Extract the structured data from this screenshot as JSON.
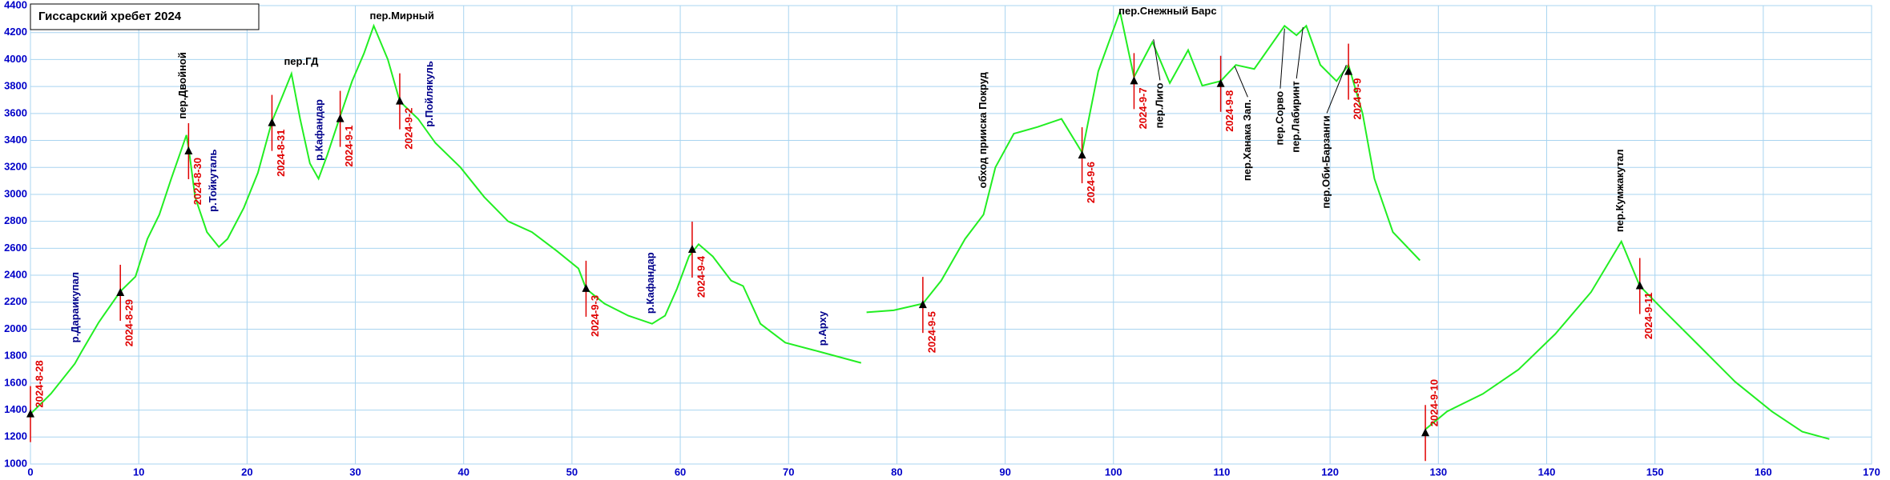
{
  "chart_data": {
    "type": "line",
    "title": "Гиссарский хребет 2024",
    "xlim": [
      0,
      170
    ],
    "ylim": [
      1000,
      4400
    ],
    "xticks": [
      0,
      10,
      20,
      30,
      40,
      50,
      60,
      70,
      80,
      90,
      100,
      110,
      120,
      130,
      140,
      150,
      160,
      170
    ],
    "yticks": [
      1000,
      1200,
      1400,
      1600,
      1800,
      2000,
      2200,
      2400,
      2600,
      2800,
      3000,
      3200,
      3400,
      3600,
      3800,
      4000,
      4200,
      4400
    ],
    "grid": true,
    "color": "#22ee22",
    "x": [
      0,
      1.9,
      4.1,
      4.7,
      6.3,
      8.3,
      9.7,
      10.8,
      11.9,
      13,
      13.8,
      14.4,
      14.7,
      15.2,
      16.3,
      17.4,
      18.2,
      19.7,
      21,
      22.3,
      23.3,
      24.1,
      24.9,
      25.8,
      26.6,
      27.4,
      28.6,
      29.7,
      30.8,
      31.7,
      33,
      34.1,
      35.8,
      37.4,
      39.7,
      41.9,
      44.1,
      46.3,
      48.6,
      50.6,
      51.3,
      53,
      55.2,
      57.4,
      58.6,
      59.7,
      60.8,
      61.7,
      63,
      64.7,
      65.8,
      67.4,
      69.7,
      73,
      76.7,
      null,
      77.2,
      79.7,
      82.4,
      84.1,
      86.3,
      88,
      89.1,
      90.8,
      93,
      95.2,
      97.1,
      98.6,
      100.6,
      101.9,
      103.6,
      105.2,
      106.9,
      108.2,
      109.9,
      111.3,
      113,
      115.8,
      116.9,
      117.8,
      119.1,
      120.6,
      121.7,
      123,
      124.1,
      125.8,
      128.3,
      null,
      128.8,
      130.8,
      134.1,
      137.4,
      140.8,
      144.1,
      146.9,
      148.6,
      150.8,
      154.1,
      157.4,
      160.8,
      163.6,
      166.1
    ],
    "values": [
      1370,
      1522,
      1744,
      1830,
      2050,
      2280,
      2390,
      2670,
      2850,
      3116,
      3300,
      3440,
      3290,
      2980,
      2720,
      2610,
      2670,
      2900,
      3160,
      3540,
      3736,
      3895,
      3560,
      3230,
      3116,
      3290,
      3580,
      3840,
      4045,
      4250,
      4000,
      3690,
      3560,
      3380,
      3200,
      2980,
      2800,
      2720,
      2580,
      2450,
      2300,
      2190,
      2100,
      2040,
      2100,
      2300,
      2540,
      2630,
      2540,
      2360,
      2320,
      2040,
      1900,
      1830,
      1750,
      null,
      2125,
      2140,
      2190,
      2360,
      2670,
      2850,
      3200,
      3450,
      3500,
      3560,
      3310,
      3913,
      4356,
      3870,
      4130,
      3825,
      4070,
      3806,
      3840,
      3960,
      3930,
      4250,
      4180,
      4250,
      3960,
      3840,
      3960,
      3600,
      3116,
      2720,
      2510,
      null,
      1257,
      1390,
      1520,
      1700,
      1965,
      2275,
      2650,
      2320,
      2140,
      1875,
      1610,
      1390,
      1240,
      1185
    ],
    "markers": {
      "x": [
        0,
        8.3,
        14.6,
        22.3,
        28.6,
        34.1,
        51.3,
        61.1,
        82.4,
        97.1,
        101.9,
        109.9,
        121.7,
        128.8,
        148.6
      ],
      "y": [
        1370,
        2270,
        3320,
        3530,
        3560,
        3690,
        2300,
        2590,
        2180,
        3290,
        3840,
        3820,
        3910,
        1230,
        2320
      ],
      "labels": [
        "2024-8-28",
        "2024-8-29",
        "2024-8-30",
        "2024-8-31",
        "2024-9-1",
        "2024-9-2",
        "2024-9-3",
        "2024-9-4",
        "2024-9-5",
        "2024-9-6",
        "2024-9-7",
        "2024-9-8",
        "2024-9-9",
        "2024-9-10",
        "2024-9-11"
      ]
    },
    "annotations": [
      {
        "text": "р.Дараикупал",
        "x": 4.2,
        "y": 1900,
        "color": "#00008b"
      },
      {
        "text": "пер.Двойной",
        "x": 14.1,
        "y": 3560,
        "color": "#000000"
      },
      {
        "text": "р.Тойкуталь",
        "x": 16.9,
        "y": 2870,
        "color": "#00008b"
      },
      {
        "text": "пер.ГД",
        "x": 25,
        "y": 3980,
        "color": "#000000"
      },
      {
        "text": "р.Кафандар",
        "x": 26.7,
        "y": 3250,
        "color": "#00008b"
      },
      {
        "text": "пер.Мирный",
        "x": 34.3,
        "y": 4320,
        "color": "#000000"
      },
      {
        "text": "р.Пойлякуль",
        "x": 36.9,
        "y": 3500,
        "color": "#00008b"
      },
      {
        "text": "р.Кафандар",
        "x": 57.3,
        "y": 2115,
        "color": "#00008b"
      },
      {
        "text": "р.Арху",
        "x": 73.2,
        "y": 1877,
        "color": "#00008b"
      },
      {
        "text": "обход прииска Покруд",
        "x": 88,
        "y": 3045,
        "color": "#000000"
      },
      {
        "text": "пер.Снежный Барс",
        "x": 105,
        "y": 4356,
        "color": "#000000"
      },
      {
        "text": "пер.Лиго",
        "x": 104.3,
        "y": 3490,
        "color": "#000000",
        "line_to": {
          "x": 103.7,
          "y": 4150
        }
      },
      {
        "text": "пер.Ханака Зап.",
        "x": 112.4,
        "y": 3100,
        "color": "#000000",
        "line_to": {
          "x": 111.2,
          "y": 3950
        }
      },
      {
        "text": "пер.Сорво",
        "x": 115.4,
        "y": 3365,
        "color": "#000000",
        "line_to": {
          "x": 115.8,
          "y": 4230
        }
      },
      {
        "text": "пер.Лабиринт",
        "x": 116.9,
        "y": 3310,
        "color": "#000000",
        "line_to": {
          "x": 117.5,
          "y": 4240
        }
      },
      {
        "text": "пер.Оби-Барзанги",
        "x": 119.7,
        "y": 2895,
        "color": "#000000",
        "line_to": {
          "x": 121.5,
          "y": 3960
        }
      },
      {
        "text": "пер.Кумжакутал",
        "x": 146.8,
        "y": 2720,
        "color": "#000000"
      }
    ]
  }
}
